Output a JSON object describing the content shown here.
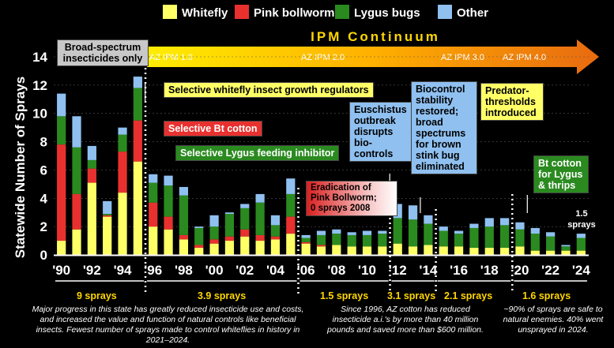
{
  "chart_data": {
    "type": "bar",
    "stacked": true,
    "ylabel": "Statewide Number of Sprays",
    "ylim": [
      0,
      14
    ],
    "y_ticks": [
      0,
      2,
      4,
      6,
      8,
      10,
      12,
      14
    ],
    "x_tick_labels": [
      "'90",
      "'92",
      "'94",
      "'96",
      "'98",
      "'00",
      "'02",
      "'04",
      "'06",
      "'08",
      "'10",
      "'12",
      "'14",
      "'16",
      "'18",
      "'20",
      "'22",
      "'24"
    ],
    "categories": [
      "1990",
      "1991",
      "1992",
      "1993",
      "1994",
      "1995",
      "1996",
      "1997",
      "1998",
      "1999",
      "2000",
      "2001",
      "2002",
      "2003",
      "2004",
      "2005",
      "2006",
      "2007",
      "2008",
      "2009",
      "2010",
      "2011",
      "2012",
      "2013",
      "2014",
      "2015",
      "2016",
      "2017",
      "2018",
      "2019",
      "2020",
      "2021",
      "2022",
      "2023",
      "2024"
    ],
    "series": [
      {
        "name": "Whitefly",
        "color": "#ffff66",
        "values": [
          1.0,
          1.8,
          5.1,
          2.7,
          4.4,
          6.6,
          2.0,
          1.8,
          1.1,
          0.5,
          0.8,
          1.0,
          1.3,
          1.0,
          1.1,
          1.5,
          0.8,
          0.6,
          0.7,
          0.6,
          0.6,
          0.6,
          0.8,
          0.6,
          0.7,
          0.6,
          0.6,
          0.5,
          0.5,
          0.5,
          0.6,
          0.3,
          0.3,
          0.3,
          0.3
        ]
      },
      {
        "name": "Pink bollworm",
        "color": "#e8312f",
        "values": [
          6.8,
          2.5,
          1.0,
          0.1,
          2.9,
          2.9,
          1.7,
          0.9,
          0.3,
          0.2,
          0.3,
          0.3,
          0.5,
          0.4,
          0.2,
          1.2,
          0.1,
          0.1,
          0,
          0,
          0,
          0,
          0,
          0,
          0,
          0,
          0,
          0,
          0,
          0,
          0,
          0,
          0,
          0,
          0
        ]
      },
      {
        "name": "Lygus bugs",
        "color": "#2a8a1f",
        "values": [
          2.0,
          3.3,
          0.6,
          0.1,
          1.2,
          2.3,
          1.4,
          2.2,
          2.8,
          1.2,
          0.9,
          1.6,
          1.5,
          2.3,
          0.8,
          1.6,
          0.3,
          0.7,
          0.8,
          0.8,
          0.8,
          0.9,
          1.8,
          1.9,
          1.5,
          1.1,
          0.9,
          1.4,
          1.5,
          1.6,
          1.2,
          1.2,
          1.0,
          0.3,
          0.9
        ]
      },
      {
        "name": "Other",
        "color": "#8fc0f0",
        "values": [
          1.6,
          2.2,
          1.0,
          0.9,
          0.5,
          0.8,
          0.6,
          0.7,
          0.6,
          0.1,
          0.8,
          0.1,
          0.3,
          0.6,
          0.7,
          1.1,
          0.2,
          0.3,
          0.3,
          0.2,
          0.3,
          0.2,
          1.0,
          1.0,
          0.6,
          0.3,
          0.2,
          0.3,
          0.6,
          0.5,
          0.5,
          0.4,
          0.3,
          0.1,
          0.3
        ]
      }
    ],
    "period_labels": [
      "9 sprays",
      "3.9 sprays",
      "1.5 sprays",
      "3.1 sprays",
      "2.1 sprays",
      "1.6 sprays"
    ],
    "annotations": {
      "ipm_title": "IPM Continuum",
      "ipm_stages": [
        "AZ IPM 1.0",
        "AZ IPM 2.0",
        "AZ IPM 3.0",
        "AZ IPM 4.0"
      ],
      "broad_spectrum": "Broad-spectrum insecticides only",
      "igr": "Selective whitefly insect growth regulators",
      "bt": "Selective Bt cotton",
      "lygus_inhibitor": "Selective Lygus feeding inhibitor",
      "euschistus": "Euschistus outbreak disrupts bio-controls",
      "biocontrol": "Biocontrol stability restored; broad spectrums for brown stink bug eliminated",
      "predator": "Predator-thresholds introduced",
      "bt_lygus": "Bt cotton for Lygus & thrips",
      "eradication_l1": "Eradication of",
      "eradication_l2": "Pink Bollworm;",
      "eradication_l3": "0 sprays 2008",
      "sprays_2024_l1": "1.5",
      "sprays_2024_l2": "sprays"
    },
    "footnotes": {
      "left": "Major progress in this state has greatly reduced insecticide use and costs, and increased the value and function of natural controls like beneficial insects. Fewest number of sprays made to control whiteflies in history in 2021–2024.",
      "middle": "Since 1996, AZ cotton has reduced insecticide a.i.'s by more than 40 million pounds and saved more than $600 million.",
      "right": "~90% of sprays are safe to natural enemies. 40% went unsprayed in 2024."
    }
  }
}
